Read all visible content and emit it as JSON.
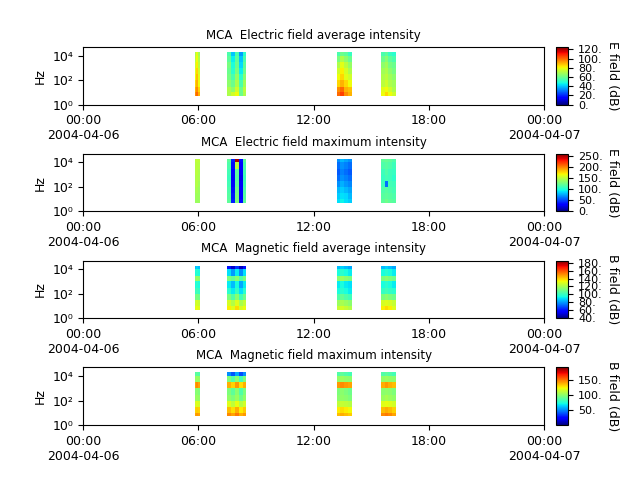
{
  "chart_data": [
    {
      "type": "heatmap",
      "title": "MCA  Electric field average intensity",
      "ylabel": "Hz",
      "log": "y",
      "x_edges": [
        5.8,
        5.9,
        6.0,
        6.1,
        7.5,
        7.7,
        7.9,
        8.1,
        8.3,
        8.5,
        13.2,
        13.4,
        13.6,
        13.8,
        14.0,
        15.5,
        15.7,
        15.9,
        16.1,
        16.3
      ],
      "y_edges": [
        5,
        10,
        30,
        100,
        300,
        1000,
        3000,
        10000,
        20000
      ],
      "cells": [
        [
          95,
          100,
          90,
          null,
          70,
          75,
          80,
          60,
          70,
          null,
          100,
          105,
          95,
          90,
          null,
          80,
          85,
          80,
          75
        ],
        [
          90,
          95,
          85,
          null,
          70,
          65,
          75,
          60,
          72,
          null,
          95,
          100,
          90,
          88,
          null,
          78,
          80,
          75,
          70
        ],
        [
          85,
          90,
          80,
          null,
          65,
          60,
          70,
          55,
          68,
          null,
          85,
          90,
          85,
          80,
          null,
          72,
          75,
          70,
          68
        ],
        [
          80,
          88,
          78,
          null,
          62,
          55,
          66,
          50,
          64,
          null,
          80,
          85,
          78,
          75,
          null,
          70,
          72,
          68,
          65
        ],
        [
          78,
          85,
          75,
          null,
          60,
          50,
          62,
          45,
          60,
          null,
          75,
          82,
          76,
          70,
          null,
          68,
          70,
          65,
          62
        ],
        [
          75,
          82,
          72,
          null,
          62,
          48,
          60,
          42,
          58,
          null,
          70,
          78,
          72,
          66,
          null,
          65,
          68,
          62,
          60
        ],
        [
          72,
          80,
          70,
          null,
          58,
          45,
          58,
          40,
          55,
          null,
          62,
          70,
          65,
          60,
          null,
          60,
          64,
          58,
          55
        ],
        [
          70,
          78,
          68,
          null,
          55,
          40,
          55,
          35,
          50,
          null,
          55,
          60,
          58,
          52,
          null,
          55,
          58,
          52,
          50
        ]
      ],
      "xlim": [
        0,
        24
      ],
      "xticks": [
        {
          "value": 0,
          "label": "00:00\n2004-04-06"
        },
        {
          "value": 6,
          "label": "06:00"
        },
        {
          "value": 12,
          "label": "12:00"
        },
        {
          "value": 18,
          "label": "18:00"
        },
        {
          "value": 24,
          "label": "00:00\n2004-04-07"
        }
      ],
      "ylim": [
        1,
        50000
      ],
      "yticks": [
        {
          "value": 1,
          "label": "10⁰"
        },
        {
          "value": 100,
          "label": "10²"
        },
        {
          "value": 10000,
          "label": "10⁴"
        }
      ],
      "colorbar": {
        "label": "E field (dB)",
        "range": [
          0,
          125
        ],
        "ticks": [
          {
            "value": 0,
            "label": "0."
          },
          {
            "value": 20,
            "label": "20."
          },
          {
            "value": 40,
            "label": "40."
          },
          {
            "value": 60,
            "label": "60."
          },
          {
            "value": 80,
            "label": "80."
          },
          {
            "value": 100,
            "label": "100."
          },
          {
            "value": 120,
            "label": "120."
          }
        ]
      }
    },
    {
      "type": "heatmap",
      "title": "MCA  Electric field maximum intensity",
      "ylabel": "Hz",
      "log": "y",
      "x_edges": [
        5.8,
        5.9,
        6.0,
        6.1,
        7.5,
        7.7,
        7.9,
        8.1,
        8.3,
        8.5,
        13.2,
        13.4,
        13.6,
        13.8,
        14.0,
        15.5,
        15.7,
        15.9,
        16.1,
        16.3
      ],
      "y_edges": [
        5,
        10,
        30,
        100,
        300,
        1000,
        3000,
        10000,
        20000
      ],
      "cells": [
        [
          140,
          140,
          140,
          null,
          120,
          40,
          130,
          35,
          120,
          null,
          90,
          95,
          90,
          85,
          null,
          120,
          125,
          120,
          118
        ],
        [
          140,
          142,
          140,
          null,
          118,
          38,
          128,
          30,
          118,
          null,
          85,
          90,
          88,
          80,
          null,
          118,
          120,
          118,
          115
        ],
        [
          142,
          145,
          140,
          null,
          115,
          35,
          125,
          30,
          115,
          null,
          80,
          85,
          80,
          75,
          null,
          115,
          118,
          115,
          112
        ],
        [
          145,
          148,
          142,
          null,
          112,
          30,
          120,
          28,
          112,
          null,
          70,
          78,
          72,
          68,
          null,
          110,
          60,
          112,
          110
        ],
        [
          145,
          148,
          145,
          null,
          110,
          28,
          118,
          25,
          110,
          null,
          60,
          70,
          65,
          60,
          null,
          108,
          112,
          110,
          105
        ],
        [
          148,
          150,
          145,
          null,
          112,
          30,
          120,
          28,
          112,
          null,
          55,
          65,
          60,
          55,
          null,
          110,
          115,
          110,
          108
        ],
        [
          148,
          150,
          148,
          null,
          115,
          35,
          150,
          30,
          115,
          null,
          60,
          70,
          65,
          60,
          null,
          115,
          118,
          115,
          110
        ],
        [
          150,
          152,
          150,
          null,
          120,
          40,
          250,
          35,
          120,
          null,
          70,
          80,
          75,
          70,
          null,
          120,
          122,
          120,
          115
        ]
      ],
      "xlim": [
        0,
        24
      ],
      "xticks": [
        {
          "value": 0,
          "label": "00:00\n2004-04-06"
        },
        {
          "value": 6,
          "label": "06:00"
        },
        {
          "value": 12,
          "label": "12:00"
        },
        {
          "value": 18,
          "label": "18:00"
        },
        {
          "value": 24,
          "label": "00:00\n2004-04-07"
        }
      ],
      "ylim": [
        1,
        50000
      ],
      "yticks": [
        {
          "value": 1,
          "label": "10⁰"
        },
        {
          "value": 100,
          "label": "10²"
        },
        {
          "value": 10000,
          "label": "10⁴"
        }
      ],
      "colorbar": {
        "label": "E field (dB)",
        "range": [
          0,
          260
        ],
        "ticks": [
          {
            "value": 0,
            "label": "0."
          },
          {
            "value": 50,
            "label": "50."
          },
          {
            "value": 100,
            "label": "100."
          },
          {
            "value": 150,
            "label": "150."
          },
          {
            "value": 200,
            "label": "200."
          },
          {
            "value": 250,
            "label": "250."
          }
        ]
      }
    },
    {
      "type": "heatmap",
      "title": "MCA  Magnetic field average intensity",
      "ylabel": "Hz",
      "log": "y",
      "x_edges": [
        5.8,
        5.9,
        6.0,
        6.1,
        7.5,
        7.7,
        7.9,
        8.1,
        8.3,
        8.5,
        13.2,
        13.4,
        13.6,
        13.8,
        14.0,
        15.5,
        15.7,
        15.9,
        16.1,
        16.3
      ],
      "y_edges": [
        5,
        10,
        30,
        100,
        300,
        1000,
        3000,
        10000,
        20000
      ],
      "cells": [
        [
          130,
          132,
          130,
          null,
          135,
          130,
          138,
          128,
          132,
          null,
          125,
          128,
          125,
          122,
          null,
          135,
          138,
          135,
          130
        ],
        [
          125,
          128,
          125,
          null,
          128,
          122,
          130,
          120,
          125,
          null,
          118,
          120,
          118,
          115,
          null,
          128,
          130,
          128,
          125
        ],
        [
          110,
          112,
          110,
          null,
          112,
          105,
          115,
          102,
          110,
          null,
          105,
          108,
          105,
          102,
          null,
          112,
          115,
          112,
          110
        ],
        [
          100,
          102,
          100,
          null,
          98,
          92,
          100,
          90,
          98,
          null,
          95,
          98,
          95,
          92,
          null,
          100,
          102,
          100,
          98
        ],
        [
          95,
          98,
          95,
          null,
          92,
          85,
          95,
          82,
          92,
          null,
          92,
          95,
          92,
          90,
          null,
          95,
          98,
          95,
          92
        ],
        [
          115,
          118,
          115,
          null,
          112,
          108,
          115,
          105,
          112,
          null,
          115,
          118,
          115,
          112,
          null,
          112,
          115,
          112,
          110
        ],
        [
          95,
          98,
          95,
          null,
          90,
          80,
          92,
          78,
          90,
          null,
          95,
          98,
          95,
          92,
          null,
          95,
          98,
          95,
          92
        ],
        [
          85,
          88,
          85,
          null,
          60,
          50,
          65,
          48,
          60,
          null,
          85,
          88,
          85,
          82,
          null,
          85,
          88,
          85,
          82
        ]
      ],
      "xlim": [
        0,
        24
      ],
      "xticks": [
        {
          "value": 0,
          "label": "00:00\n2004-04-06"
        },
        {
          "value": 6,
          "label": "06:00"
        },
        {
          "value": 12,
          "label": "12:00"
        },
        {
          "value": 18,
          "label": "18:00"
        },
        {
          "value": 24,
          "label": "00:00\n2004-04-07"
        }
      ],
      "ylim": [
        1,
        50000
      ],
      "yticks": [
        {
          "value": 1,
          "label": "10⁰"
        },
        {
          "value": 100,
          "label": "10²"
        },
        {
          "value": 10000,
          "label": "10⁴"
        }
      ],
      "colorbar": {
        "label": "B field (dB)",
        "range": [
          40,
          185
        ],
        "ticks": [
          {
            "value": 40,
            "label": "40."
          },
          {
            "value": 60,
            "label": "60."
          },
          {
            "value": 80,
            "label": "80."
          },
          {
            "value": 100,
            "label": "100."
          },
          {
            "value": 120,
            "label": "120."
          },
          {
            "value": 140,
            "label": "140."
          },
          {
            "value": 160,
            "label": "160."
          },
          {
            "value": 180,
            "label": "180."
          }
        ]
      }
    },
    {
      "type": "heatmap",
      "title": "MCA  Magnetic field maximum intensity",
      "ylabel": "Hz",
      "log": "y",
      "x_edges": [
        5.8,
        5.9,
        6.0,
        6.1,
        7.5,
        7.7,
        7.9,
        8.1,
        8.3,
        8.5,
        13.2,
        13.4,
        13.6,
        13.8,
        14.0,
        15.5,
        15.7,
        15.9,
        16.1,
        16.3
      ],
      "y_edges": [
        5,
        10,
        30,
        100,
        300,
        1000,
        3000,
        10000,
        20000
      ],
      "cells": [
        [
          140,
          142,
          140,
          null,
          145,
          140,
          148,
          138,
          142,
          null,
          135,
          138,
          135,
          132,
          null,
          145,
          148,
          145,
          140
        ],
        [
          130,
          132,
          130,
          null,
          135,
          128,
          138,
          125,
          132,
          null,
          125,
          128,
          125,
          122,
          null,
          135,
          138,
          135,
          130
        ],
        [
          115,
          118,
          115,
          null,
          118,
          110,
          120,
          108,
          115,
          null,
          110,
          112,
          110,
          108,
          null,
          118,
          120,
          118,
          115
        ],
        [
          100,
          102,
          100,
          null,
          100,
          95,
          102,
          92,
          100,
          null,
          98,
          100,
          98,
          95,
          null,
          102,
          105,
          102,
          100
        ],
        [
          95,
          98,
          95,
          null,
          95,
          88,
          98,
          85,
          95,
          null,
          95,
          98,
          95,
          92,
          null,
          98,
          100,
          98,
          95
        ],
        [
          140,
          145,
          140,
          null,
          138,
          130,
          142,
          128,
          138,
          null,
          142,
          145,
          142,
          140,
          null,
          138,
          142,
          138,
          135
        ],
        [
          100,
          102,
          100,
          null,
          95,
          85,
          98,
          82,
          95,
          null,
          100,
          102,
          100,
          98,
          null,
          100,
          102,
          100,
          98
        ],
        [
          85,
          88,
          85,
          null,
          50,
          40,
          55,
          38,
          50,
          null,
          85,
          88,
          85,
          82,
          null,
          85,
          88,
          85,
          82
        ]
      ],
      "xlim": [
        0,
        24
      ],
      "xticks": [
        {
          "value": 0,
          "label": "00:00\n2004-04-06"
        },
        {
          "value": 6,
          "label": "06:00"
        },
        {
          "value": 12,
          "label": "12:00"
        },
        {
          "value": 18,
          "label": "18:00"
        },
        {
          "value": 24,
          "label": "00:00\n2004-04-07"
        }
      ],
      "ylim": [
        1,
        50000
      ],
      "yticks": [
        {
          "value": 1,
          "label": "10⁰"
        },
        {
          "value": 100,
          "label": "10²"
        },
        {
          "value": 10000,
          "label": "10⁴"
        }
      ],
      "colorbar": {
        "label": "B field (dB)",
        "range": [
          0,
          190
        ],
        "ticks": [
          {
            "value": 50,
            "label": "50."
          },
          {
            "value": 100,
            "label": "100."
          },
          {
            "value": 150,
            "label": "150."
          }
        ]
      }
    }
  ]
}
